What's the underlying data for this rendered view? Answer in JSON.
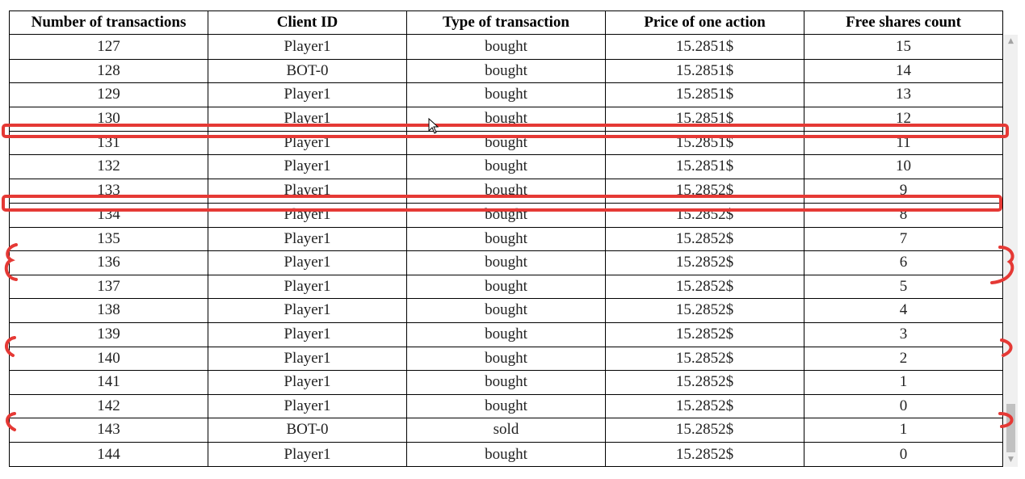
{
  "table": {
    "columns": [
      "Number of transactions",
      "Client ID",
      "Type of transaction",
      "Price of one action",
      "Free shares count"
    ],
    "rows": [
      [
        "127",
        "Player1",
        "bought",
        "15.2851$",
        "15"
      ],
      [
        "128",
        "BOT-0",
        "bought",
        "15.2851$",
        "14"
      ],
      [
        "129",
        "Player1",
        "bought",
        "15.2851$",
        "13"
      ],
      [
        "130",
        "Player1",
        "bought",
        "15.2851$",
        "12"
      ],
      [
        "131",
        "Player1",
        "bought",
        "15.2851$",
        "11"
      ],
      [
        "132",
        "Player1",
        "bought",
        "15.2851$",
        "10"
      ],
      [
        "133",
        "Player1",
        "bought",
        "15.2852$",
        "9"
      ],
      [
        "134",
        "Player1",
        "bought",
        "15.2852$",
        "8"
      ],
      [
        "135",
        "Player1",
        "bought",
        "15.2852$",
        "7"
      ],
      [
        "136",
        "Player1",
        "bought",
        "15.2852$",
        "6"
      ],
      [
        "137",
        "Player1",
        "bought",
        "15.2852$",
        "5"
      ],
      [
        "138",
        "Player1",
        "bought",
        "15.2852$",
        "4"
      ],
      [
        "139",
        "Player1",
        "bought",
        "15.2852$",
        "3"
      ],
      [
        "140",
        "Player1",
        "bought",
        "15.2852$",
        "2"
      ],
      [
        "141",
        "Player1",
        "bought",
        "15.2852$",
        "1"
      ],
      [
        "142",
        "Player1",
        "bought",
        "15.2852$",
        "0"
      ],
      [
        "143",
        "BOT-0",
        "sold",
        "15.2852$",
        "1"
      ],
      [
        "144",
        "Player1",
        "bought",
        "15.2852$",
        "0"
      ]
    ]
  },
  "scrollbar": {
    "up_arrow": "▲",
    "down_arrow": "▼"
  },
  "annotation_color": "#e53935"
}
